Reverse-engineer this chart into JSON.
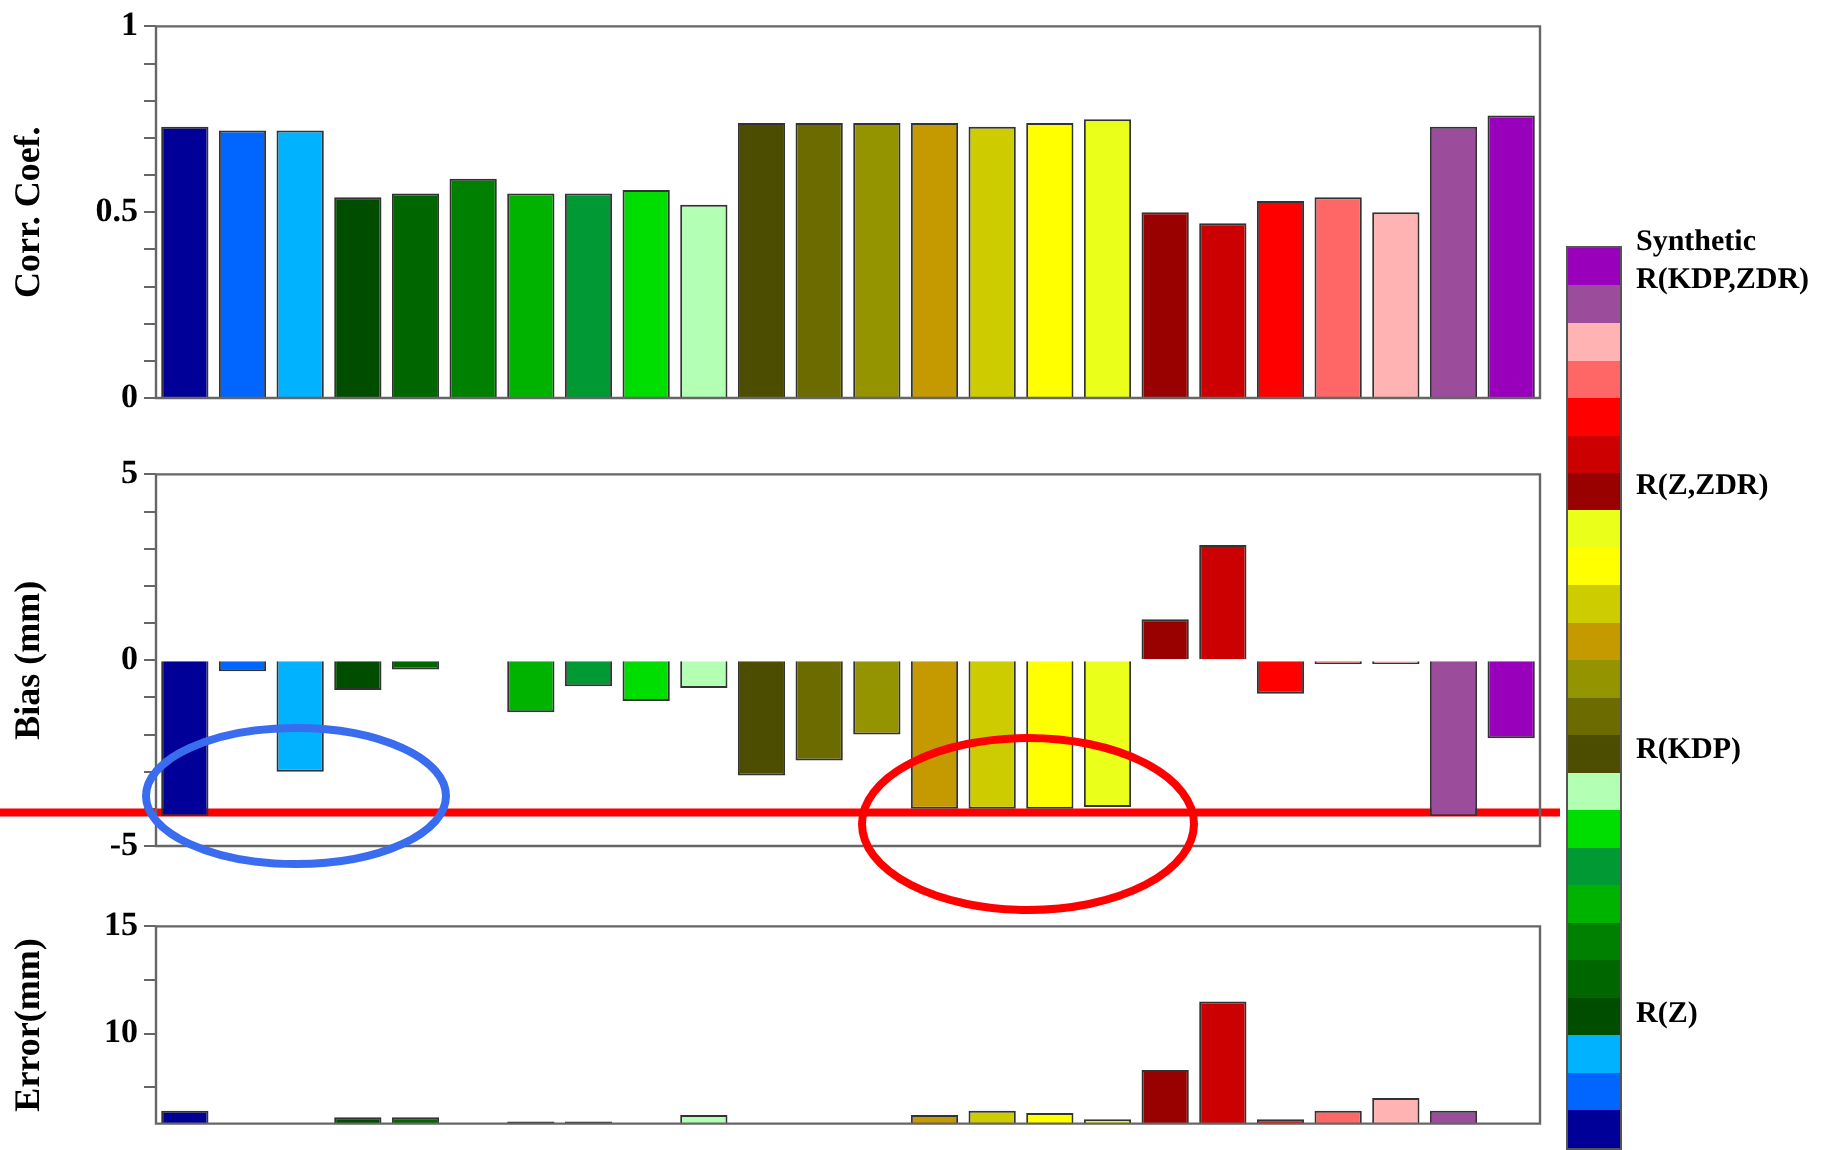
{
  "chart_data": [
    {
      "type": "bar",
      "ylabel": "Corr. Coef.",
      "categories": [
        null,
        null,
        null,
        null,
        null,
        null,
        null,
        null,
        null,
        null,
        null,
        null,
        null,
        null,
        null,
        null,
        null,
        null,
        null,
        null,
        null,
        null,
        null,
        null
      ],
      "values": [
        0.73,
        0.72,
        0.72,
        0.54,
        0.55,
        0.59,
        0.55,
        0.55,
        0.56,
        0.52,
        0.74,
        0.74,
        0.74,
        0.74,
        0.73,
        0.74,
        0.75,
        0.5,
        0.47,
        0.53,
        0.54,
        0.5,
        0.73,
        0.76
      ],
      "colors": [
        "#000099",
        "#0066ff",
        "#00b2ff",
        "#004d00",
        "#006600",
        "#008000",
        "#00b300",
        "#009933",
        "#00dd00",
        "#b3ffb3",
        "#4d4d00",
        "#6b6b00",
        "#949400",
        "#c49a00",
        "#cccc00",
        "#ffff00",
        "#eaff1a",
        "#990000",
        "#cc0000",
        "#ff0000",
        "#ff6666",
        "#ffb3b3",
        "#9b4d9b",
        "#9900bb"
      ],
      "ylim": [
        0,
        1
      ],
      "yticks": [
        0,
        {
          "value": 0.1,
          "label": null
        },
        {
          "value": 0.2,
          "label": null
        },
        {
          "value": 0.3,
          "label": null
        },
        {
          "value": 0.4,
          "label": null
        },
        0.5,
        {
          "value": 0.6,
          "label": null
        },
        {
          "value": 0.7,
          "label": null
        },
        {
          "value": 0.8,
          "label": null
        },
        {
          "value": 0.9,
          "label": null
        },
        1
      ],
      "tick_labels": "y",
      "annotations": [
        "Synthetic",
        "R(KDP,ZDR)",
        "R(Z,ZDR)",
        "R(KDP)",
        "R(Z)"
      ]
    },
    {
      "type": "bar",
      "ylabel": "Bias (mm)",
      "categories": [
        null,
        null,
        null,
        null,
        null,
        null,
        null,
        null,
        null,
        null,
        null,
        null,
        null,
        null,
        null,
        null,
        null,
        null,
        null,
        null,
        null,
        null,
        null,
        null
      ],
      "values": [
        -4.2,
        -0.3,
        -3.0,
        -0.8,
        -0.25,
        0,
        -1.4,
        -0.7,
        -1.1,
        -0.75,
        -3.1,
        -2.7,
        -2.0,
        -4.0,
        -4.0,
        -4.0,
        -3.95,
        1.1,
        3.1,
        -0.9,
        -0.1,
        -0.1,
        -4.2,
        -2.1
      ],
      "colors": [
        "#000099",
        "#0066ff",
        "#00b2ff",
        "#004d00",
        "#006600",
        "#008000",
        "#00b300",
        "#009933",
        "#00dd00",
        "#b3ffb3",
        "#4d4d00",
        "#6b6b00",
        "#949400",
        "#c49a00",
        "#cccc00",
        "#ffff00",
        "#eaff1a",
        "#990000",
        "#cc0000",
        "#ff0000",
        "#ff6666",
        "#ffb3b3",
        "#9b4d9b",
        "#9900bb"
      ],
      "ylim": [
        -5,
        5
      ],
      "yticks": [
        -5,
        {
          "value": -4,
          "label": null
        },
        {
          "value": -3,
          "label": null
        },
        {
          "value": -2,
          "label": null
        },
        {
          "value": -1,
          "label": null
        },
        0,
        {
          "value": 1,
          "label": null
        },
        {
          "value": 2,
          "label": null
        },
        {
          "value": 3,
          "label": null
        },
        {
          "value": 4,
          "label": null
        },
        5
      ],
      "tick_labels": "y",
      "ref_lines": [
        {
          "axis": "y",
          "value": -4.1,
          "color": "#ff0000"
        }
      ]
    },
    {
      "type": "bar",
      "ylabel": "Error(mm)",
      "categories": [
        null,
        null,
        null,
        null,
        null,
        null,
        null,
        null,
        null,
        null,
        null,
        null,
        null,
        null,
        null,
        null,
        null,
        null,
        null,
        null,
        null,
        null,
        null,
        null
      ],
      "values": [
        6.4,
        null,
        null,
        6.1,
        6.1,
        null,
        5.9,
        5.9,
        null,
        6.2,
        null,
        null,
        null,
        6.2,
        6.4,
        6.3,
        6.0,
        8.3,
        11.5,
        6.0,
        6.4,
        7.0,
        6.4,
        null
      ],
      "colors": [
        "#000099",
        "#0066ff",
        "#00b2ff",
        "#004d00",
        "#006600",
        "#008000",
        "#00b300",
        "#009933",
        "#00dd00",
        "#b3ffb3",
        "#4d4d00",
        "#6b6b00",
        "#949400",
        "#c49a00",
        "#cccc00",
        "#ffff00",
        "#eaff1a",
        "#990000",
        "#cc0000",
        "#ff0000",
        "#ff6666",
        "#ffb3b3",
        "#9b4d9b",
        "#9900bb"
      ],
      "ylim": [
        5.8,
        15
      ],
      "yticks": [
        {
          "value": 7.5,
          "label": null
        },
        10,
        {
          "value": 12.5,
          "label": null
        },
        15
      ],
      "tick_labels": "y"
    }
  ]
}
